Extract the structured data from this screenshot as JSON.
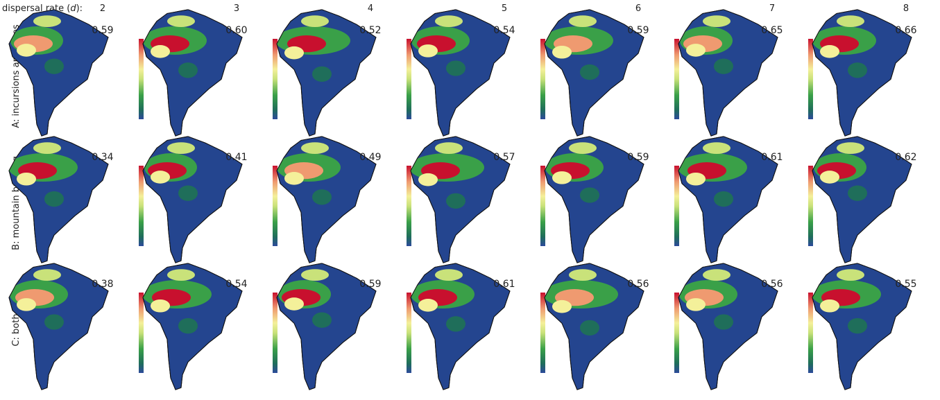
{
  "header": {
    "text_before": "dispersal rate (",
    "italic": "d",
    "text_after": "):"
  },
  "columns": [
    "2",
    "3",
    "4",
    "5",
    "6",
    "7",
    "8"
  ],
  "rows": [
    {
      "label": "A: incursions and lakes",
      "scores": [
        "0.59",
        "0.60",
        "0.52",
        "0.54",
        "0.59",
        "0.65",
        "0.66"
      ]
    },
    {
      "label": "B: mountain building",
      "scores": [
        "0.34",
        "0.41",
        "0.49",
        "0.57",
        "0.59",
        "0.61",
        "0.62"
      ]
    },
    {
      "label": "C: both",
      "scores": [
        "0.38",
        "0.54",
        "0.59",
        "0.61",
        "0.56",
        "0.56",
        "0.55"
      ]
    }
  ]
}
